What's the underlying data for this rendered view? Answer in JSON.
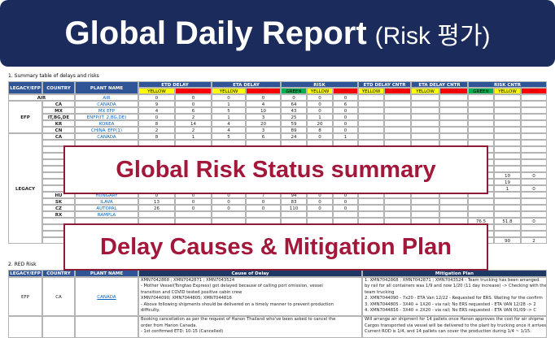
{
  "header": {
    "title": "Global Daily Report",
    "subtitle": "(Risk 평가)"
  },
  "summary": {
    "heading": "1. Summary table of delays and risks",
    "columns": [
      "LEGACY/EFP",
      "COUNTRY",
      "PLANT NAME"
    ],
    "groups": [
      {
        "name": "ETD DELAY",
        "subs": [
          "YELLOW",
          "RED"
        ]
      },
      {
        "name": "ETA DELAY",
        "subs": [
          "YELLOW",
          "RED"
        ]
      },
      {
        "name": "RISK",
        "subs": [
          "GREEN",
          "YELLOW",
          "RED"
        ]
      },
      {
        "name": "ETD DELAY CNTR",
        "subs": [
          "YELLOW",
          "RED"
        ]
      },
      {
        "name": "ETA DELAY CNTR",
        "subs": [
          "YELLOW",
          "RED"
        ]
      },
      {
        "name": "RISK CNTR",
        "subs": [
          "GREEN",
          "YELLOW",
          "RED"
        ]
      }
    ],
    "sub_colors": {
      "GREEN": "#00b050",
      "YELLOW": "#ffff00",
      "RED": "#ff0000"
    },
    "sections": [
      {
        "label": "AIR",
        "rows": [
          {
            "plant": "AIR",
            "values": [
              0,
              0,
              0,
              0,
              0,
              0,
              0
            ]
          }
        ]
      },
      {
        "label": "EFP",
        "rows": [
          {
            "country": "CA",
            "plant": "CANADA",
            "values": [
              9,
              0,
              1,
              4,
              64,
              0,
              6
            ]
          },
          {
            "country": "MX",
            "plant": "MX EFP",
            "values": [
              4,
              6,
              5,
              10,
              43,
              0,
              0
            ]
          },
          {
            "country": "IT,BG,DE",
            "plant": "ENFP(IT_2,BG,DE)",
            "values": [
              0,
              2,
              1,
              3,
              25,
              1,
              0
            ]
          },
          {
            "country": "KR",
            "plant": "KOREA",
            "values": [
              8,
              14,
              4,
              20,
              59,
              20,
              0
            ]
          },
          {
            "country": "CN",
            "plant": "CHINA_EFP(1)",
            "values": [
              2,
              2,
              4,
              3,
              89,
              8,
              0
            ]
          }
        ]
      },
      {
        "label": "LEGACY",
        "rows": [
          {
            "country": "CA",
            "plant": "CANADA",
            "values": [
              8,
              1,
              5,
              6,
              24,
              0,
              1
            ]
          },
          {
            "cntr": [
              null,
              null,
              null,
              null,
              null,
              null,
              null
            ]
          },
          {
            "cntr": [
              null,
              null,
              null,
              null,
              null,
              null,
              null
            ]
          },
          {
            "cntr": [
              null,
              null,
              null,
              null,
              null,
              null,
              null
            ]
          },
          {
            "cntr": [
              null,
              null,
              null,
              null,
              null,
              null,
              null
            ]
          },
          {
            "cntr": [
              null,
              null,
              null,
              null,
              null,
              null,
              null
            ]
          },
          {
            "cntr": [
              null,
              null,
              null,
              null,
              6,
              10,
              0
            ]
          },
          {
            "cntr": [
              null,
              null,
              null,
              null,
              128,
              19,
              null
            ]
          },
          {
            "cntr": [
              null,
              null,
              null,
              null,
              0,
              1,
              0
            ]
          },
          {
            "country": "HU",
            "plant": "HUNGARY",
            "values": [
              0,
              0,
              0,
              7,
              94,
              0,
              0
            ]
          },
          {
            "country": "SK",
            "plant": "ILAVA",
            "values": [
              13,
              0,
              0,
              0,
              83,
              0,
              0
            ]
          },
          {
            "country": "CZ",
            "plant": "AUTOPAL",
            "values": [
              26,
              0,
              0,
              0,
              110,
              0,
              0
            ]
          },
          {
            "country": "RX",
            "plant": "RAMPLA"
          },
          {
            "cntr": [
              null,
              null,
              null,
              null,
              76.5,
              51.8,
              0
            ]
          },
          {
            "cntr": [
              null,
              null,
              null,
              null,
              null,
              null,
              null
            ]
          },
          {
            "cntr": [
              null,
              null,
              null,
              null,
              null,
              null,
              null
            ]
          },
          {
            "cntr": [
              null,
              null,
              null,
              null,
              628,
              90,
              2
            ]
          }
        ]
      }
    ]
  },
  "overlays": [
    "Global Risk Status summary",
    "Delay Causes & Mitigation Plan"
  ],
  "red_risk": {
    "heading": "2. RED Risk",
    "columns": [
      "LEGACY/EFP",
      "COUNTRY",
      "PLANT NAME",
      "Cause of Delay",
      "Mitigation Plan"
    ],
    "rows": [
      {
        "legacy": "EFP",
        "country": "CA",
        "plant": "CANADA",
        "cause": [
          "XMN7042868 ; XMN7042871 ; XMN7043524",
          "- Mother Vessel(Tongtao Express) got delayed because of calling port omission, vessel",
          "transition and COVID tested positive cabin crew",
          "XMN7044090; XMN7044805; XMN7044816",
          "- Above following shipments should be delivered on a timely manner to prevent production",
          "difficulty."
        ],
        "mitigation": [
          "1. XMN7042868 ; XMN7042871 ; XMN7043524 - Team trucking has been arranged.",
          "by rail for all containers was 1/9 and now 1/20 (11 day increase) -> Checking with the",
          "team trucking",
          "2. XMN7044090 - 7x20 - ETA Van 12/22 - Requested for ERS. Waiting for the confirm",
          "3. XMN7044805 - 3X40 + 1X20 - via rail; No ERS requested - ETA VAN 12/28 -> 2",
          "4. XMN7044816 - 3X40 + 2X20 - via rail; No ERS requested - ETA VAN 01/09 -> C"
        ]
      },
      {
        "cause": [
          "Booking cancellation as per the request of Hanon Thailand who've been asked to cancel the",
          "order from Hanon Canada.",
          "- 1st confirmed ETD: 10-15 (Cancelled)"
        ],
        "mitigation": [
          "Will arrange air shipment for 14 pallets once Hanon approves the cost for air shipme",
          "Cargos transported via vessel will be delivered to the plant by trucking once it arrives",
          "Current ROD is 1/4, and 14 pallets can cover the production during 1/4 ~ 1/15."
        ]
      }
    ]
  }
}
